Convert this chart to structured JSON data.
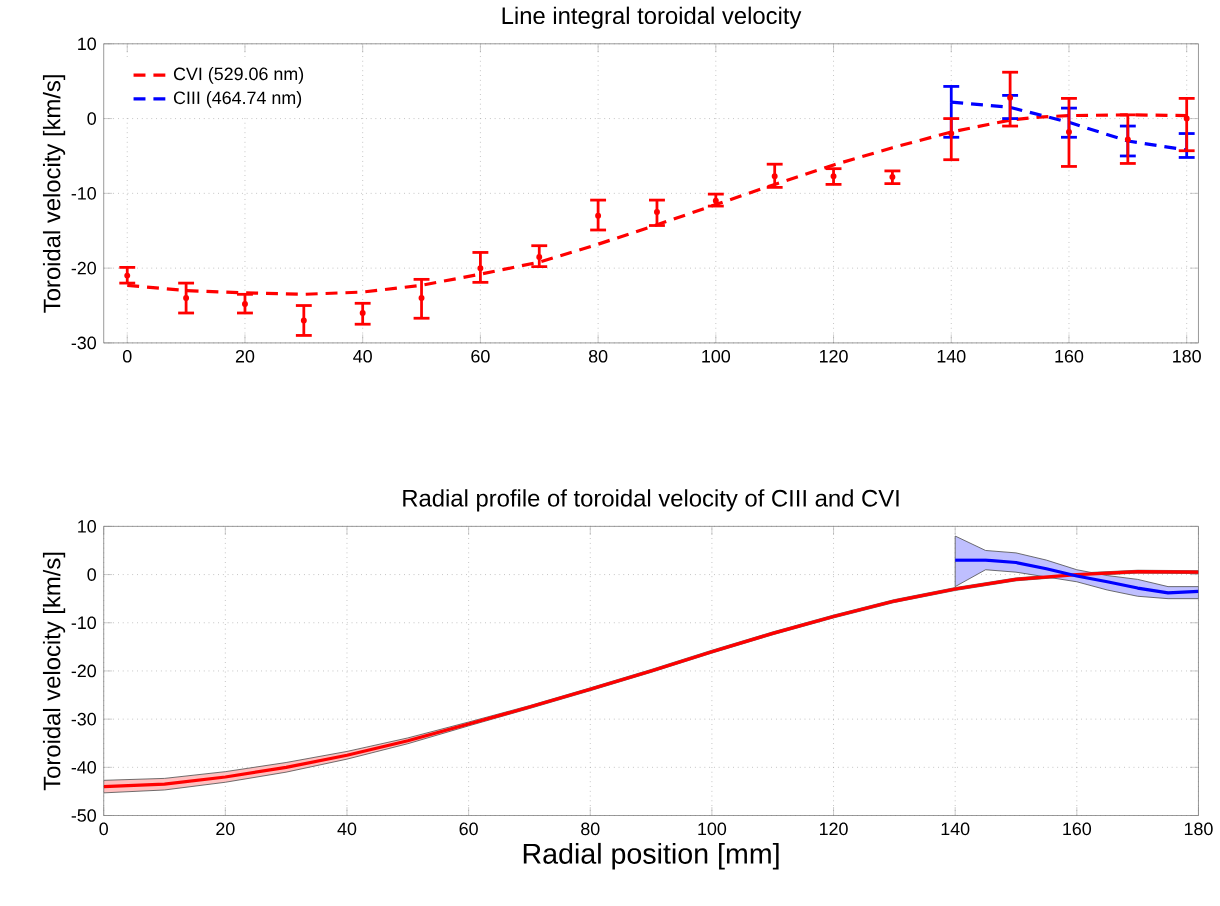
{
  "chart_data": [
    {
      "type": "line",
      "title": "Line integral toroidal velocity",
      "ylabel": "Toroidal velocity [km/s]",
      "xlim": [
        -4,
        182
      ],
      "ylim": [
        -30,
        10
      ],
      "xticks": [
        0,
        20,
        40,
        60,
        80,
        100,
        120,
        140,
        160,
        180
      ],
      "yticks": [
        -30,
        -20,
        -10,
        0,
        10
      ],
      "grid": true,
      "legend": "top left",
      "line_style": "dashed",
      "series": [
        {
          "name": "CVI (529.06 nm)",
          "color": "#ff0000",
          "x": [
            0,
            10,
            20,
            30,
            40,
            50,
            60,
            70,
            80,
            90,
            100,
            110,
            120,
            130,
            140,
            150,
            155,
            160,
            170,
            180
          ],
          "values": [
            -22.3,
            -23,
            -23.3,
            -23.5,
            -23.2,
            -22.3,
            -20.8,
            -19.2,
            -16.8,
            -14.2,
            -11.5,
            -8.8,
            -6.2,
            -3.9,
            -1.8,
            -0.2,
            0.2,
            0.4,
            0.5,
            0.4
          ]
        },
        {
          "name": "CIII (464.74 nm)",
          "color": "#0000ff",
          "x": [
            140,
            150,
            160,
            170,
            180
          ],
          "values": [
            2.2,
            1.5,
            -0.5,
            -3,
            -4.2
          ],
          "errors": [
            [
              -2.5,
              4.3
            ],
            [
              0,
              3.1
            ],
            [
              -2.5,
              1.4
            ],
            [
              -5,
              -1
            ],
            [
              -5.2,
              -2
            ]
          ]
        },
        {
          "type": "scatter",
          "marker": "circle",
          "color": "#ff0000",
          "x": [
            0,
            10,
            20,
            30,
            40,
            50,
            60,
            70,
            80,
            90,
            100,
            110,
            120,
            130,
            140,
            150,
            160,
            170,
            180
          ],
          "values": [
            -21,
            -24,
            -24.8,
            -27,
            -26,
            -24,
            -20,
            -18.5,
            -13,
            -12.5,
            -11,
            -7.7,
            -7.7,
            -7.8,
            -2,
            2.8,
            -1.8,
            -2.8,
            0
          ],
          "errors": [
            [
              -22,
              -19.9
            ],
            [
              -26,
              -22
            ],
            [
              -26,
              -23.5
            ],
            [
              -29,
              -25
            ],
            [
              -27.5,
              -24.7
            ],
            [
              -26.7,
              -21.5
            ],
            [
              -21.9,
              -17.9
            ],
            [
              -19.8,
              -17
            ],
            [
              -14.9,
              -10.9
            ],
            [
              -14.3,
              -10.9
            ],
            [
              -11.7,
              -10.1
            ],
            [
              -9.2,
              -6.1
            ],
            [
              -8.8,
              -6.7
            ],
            [
              -8.7,
              -7
            ],
            [
              -5.5,
              0
            ],
            [
              -1,
              6.2
            ],
            [
              -6.4,
              2.7
            ],
            [
              -6,
              0.5
            ],
            [
              -4.3,
              2.7
            ]
          ]
        }
      ]
    },
    {
      "type": "line",
      "title": "Radial profile of toroidal velocity of CIII and CVI",
      "xlabel": "Radial position [mm]",
      "ylabel": "Toroidal velocity [km/s]",
      "xlim": [
        0,
        180
      ],
      "ylim": [
        -50,
        10
      ],
      "xticks": [
        0,
        20,
        40,
        60,
        80,
        100,
        120,
        140,
        160,
        180
      ],
      "yticks": [
        -50,
        -40,
        -30,
        -20,
        -10,
        0,
        10
      ],
      "grid": true,
      "line_style": "solid",
      "series": [
        {
          "color": "#ff0000",
          "x": [
            0,
            10,
            20,
            30,
            40,
            50,
            60,
            70,
            80,
            90,
            100,
            110,
            120,
            130,
            140,
            150,
            160,
            170,
            180
          ],
          "values": [
            -44,
            -43.5,
            -42,
            -40,
            -37.5,
            -34.5,
            -31,
            -27.5,
            -23.8,
            -20,
            -16,
            -12.2,
            -8.7,
            -5.5,
            -3,
            -1,
            0,
            0.6,
            0.5
          ],
          "lower": [
            -45.3,
            -44.7,
            -43.1,
            -41,
            -38.3,
            -35.1,
            -31.4,
            -27.8,
            -24.1,
            -20.3,
            -16.3,
            -12.5,
            -9,
            -5.8,
            -3.3,
            -1.3,
            -0.3,
            0.3,
            0.2
          ],
          "upper": [
            -42.7,
            -42.3,
            -40.9,
            -39,
            -36.7,
            -33.9,
            -30.6,
            -27.2,
            -23.5,
            -19.7,
            -15.7,
            -11.9,
            -8.4,
            -5.2,
            -2.7,
            -0.7,
            0.3,
            0.9,
            0.8
          ]
        },
        {
          "color": "#0000ff",
          "x": [
            140,
            145,
            150,
            155,
            160,
            165,
            170,
            175,
            180
          ],
          "values": [
            3,
            3,
            2.5,
            1.2,
            -0.3,
            -1.5,
            -2.8,
            -3.8,
            -3.5
          ],
          "lower": [
            -2.5,
            1,
            0.5,
            -0.5,
            -1.5,
            -3.2,
            -4.5,
            -5,
            -5
          ],
          "upper": [
            8,
            5,
            4.5,
            3,
            1,
            -0.2,
            -1,
            -2.5,
            -2.5
          ]
        }
      ]
    }
  ]
}
